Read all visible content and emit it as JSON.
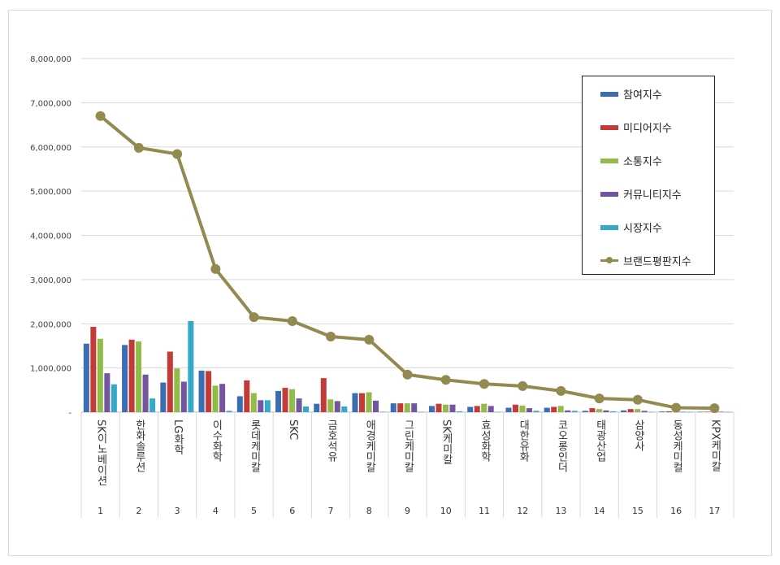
{
  "chart_data": {
    "type": "bar",
    "ylim": [
      0,
      8000000
    ],
    "yticks": [
      "-",
      "1,000,000",
      "2,000,000",
      "3,000,000",
      "4,000,000",
      "5,000,000",
      "6,000,000",
      "7,000,000",
      "8,000,000"
    ],
    "ytick_values": [
      0,
      1000000,
      2000000,
      3000000,
      4000000,
      5000000,
      6000000,
      7000000,
      8000000
    ],
    "grid": true,
    "legend_position": "top-right",
    "categories": [
      "SK이노베이션",
      "한화솔루션",
      "LG화학",
      "이수화학",
      "롯데케미칼",
      "SKC",
      "금호석유",
      "애경케미칼",
      "그린케미칼",
      "SK케미칼",
      "효성화학",
      "대한유화",
      "코오롱인더",
      "태광산업",
      "삼양사",
      "동성케미컬",
      "KPX케미칼"
    ],
    "ranks": [
      "1",
      "2",
      "3",
      "4",
      "5",
      "6",
      "7",
      "8",
      "9",
      "10",
      "11",
      "12",
      "13",
      "14",
      "15",
      "16",
      "17"
    ],
    "series": [
      {
        "name": "참여지수",
        "color": "#3b6db3",
        "values": [
          1550000,
          1520000,
          670000,
          940000,
          360000,
          480000,
          190000,
          430000,
          200000,
          140000,
          120000,
          100000,
          100000,
          30000,
          40000,
          15000,
          10000
        ]
      },
      {
        "name": "미디어지수",
        "color": "#c43a36",
        "values": [
          1930000,
          1640000,
          1370000,
          930000,
          720000,
          550000,
          770000,
          430000,
          200000,
          190000,
          140000,
          170000,
          120000,
          90000,
          70000,
          20000,
          10000
        ]
      },
      {
        "name": "소통지수",
        "color": "#92bb48",
        "values": [
          1660000,
          1600000,
          990000,
          600000,
          430000,
          520000,
          290000,
          450000,
          200000,
          170000,
          190000,
          150000,
          140000,
          70000,
          70000,
          10000,
          10000
        ]
      },
      {
        "name": "커뮤니티지수",
        "color": "#7355a2",
        "values": [
          880000,
          850000,
          690000,
          640000,
          270000,
          310000,
          250000,
          260000,
          200000,
          170000,
          140000,
          90000,
          40000,
          40000,
          30000,
          10000,
          10000
        ]
      },
      {
        "name": "시장지수",
        "color": "#35a9c9",
        "values": [
          630000,
          310000,
          2060000,
          30000,
          270000,
          130000,
          130000,
          10000,
          5000,
          20000,
          5000,
          30000,
          30000,
          20000,
          5000,
          5000,
          5000
        ]
      },
      {
        "name": "브랜드평판지수",
        "type": "line",
        "color": "#938a4f",
        "values": [
          6700000,
          5980000,
          5840000,
          3240000,
          2150000,
          2060000,
          1710000,
          1640000,
          850000,
          730000,
          640000,
          590000,
          480000,
          310000,
          280000,
          100000,
          90000
        ]
      }
    ]
  }
}
